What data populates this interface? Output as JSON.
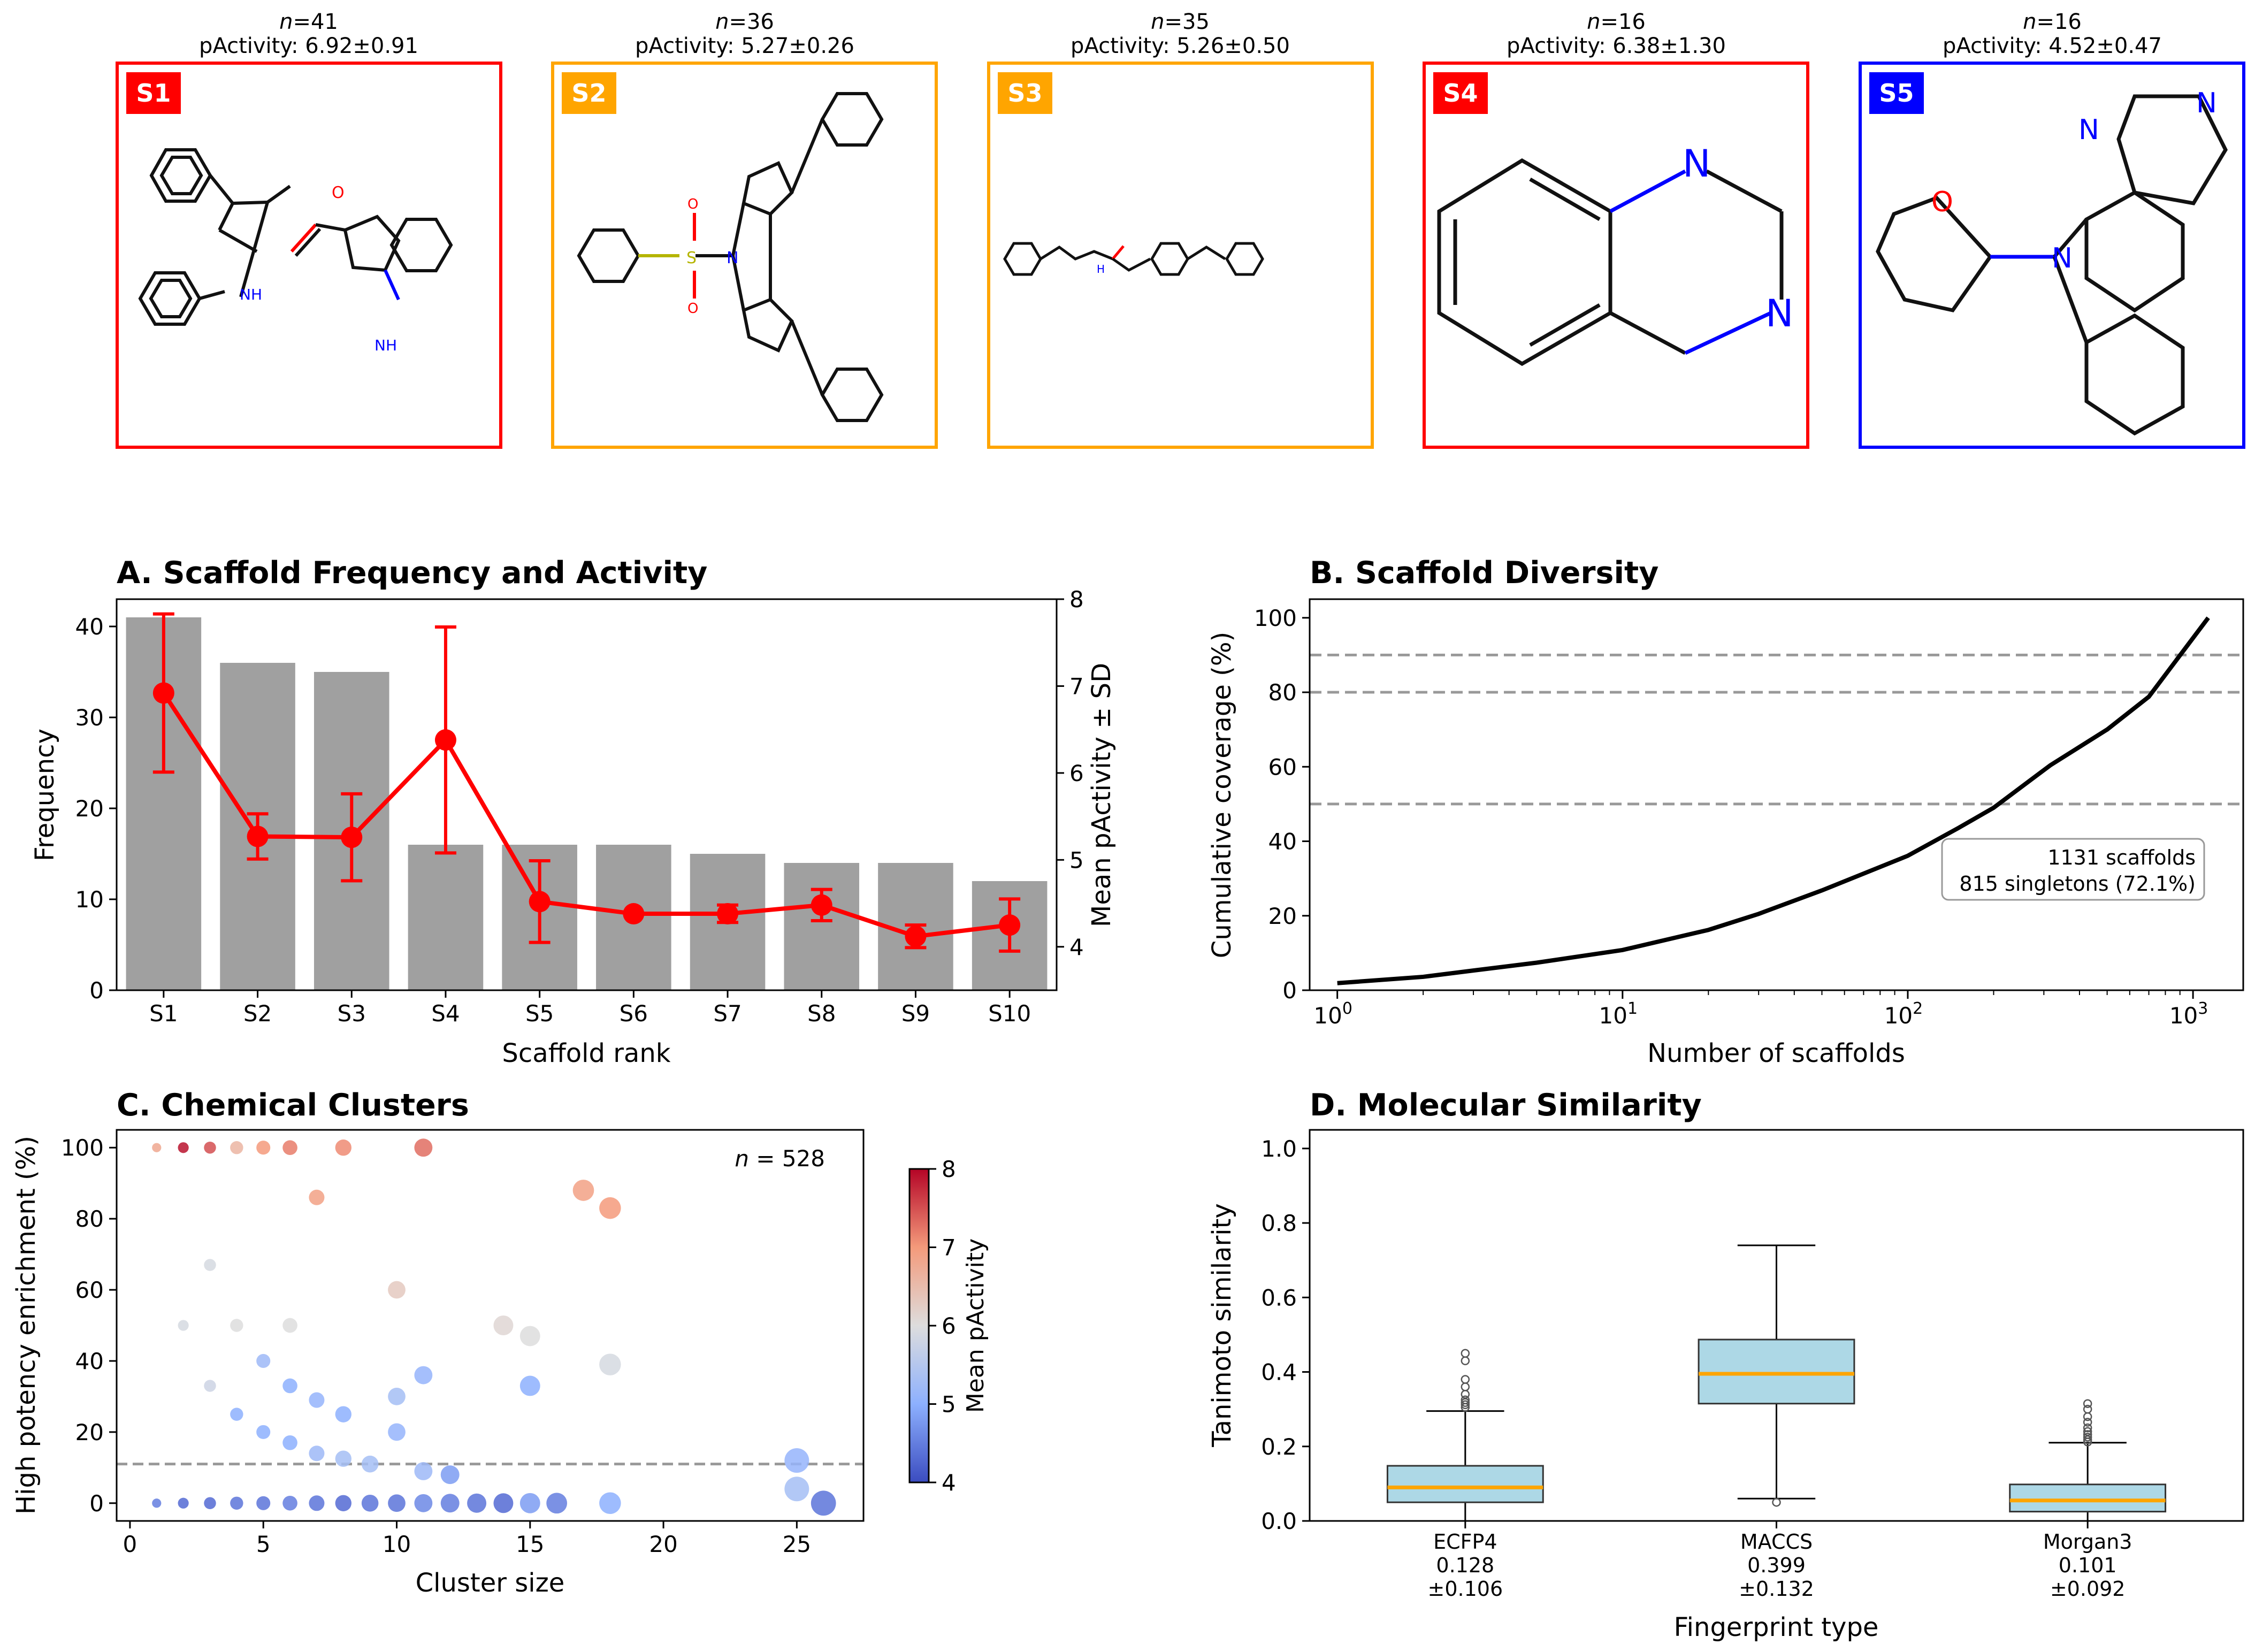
{
  "scaffolds": [
    {
      "label": "S1",
      "n_prefix": "n",
      "n_value": "=41",
      "activity": "pActivity: 6.92±0.91",
      "color": "#ff0000"
    },
    {
      "label": "S2",
      "n_prefix": "n",
      "n_value": "=36",
      "activity": "pActivity: 5.27±0.26",
      "color": "#ffa500"
    },
    {
      "label": "S3",
      "n_prefix": "n",
      "n_value": "=35",
      "activity": "pActivity: 5.26±0.50",
      "color": "#ffa500"
    },
    {
      "label": "S4",
      "n_prefix": "n",
      "n_value": "=16",
      "activity": "pActivity: 6.38±1.30",
      "color": "#ff0000"
    },
    {
      "label": "S5",
      "n_prefix": "n",
      "n_value": "=16",
      "activity": "pActivity: 4.52±0.47",
      "color": "#0000ff"
    }
  ],
  "chart_data": [
    {
      "panel": "A",
      "type": "bar",
      "title": "A. Scaffold Frequency and Activity",
      "xlabel": "Scaffold rank",
      "ylabel": "Frequency",
      "ylabel_right": "Mean pActivity ± SD",
      "categories": [
        "S1",
        "S2",
        "S3",
        "S4",
        "S5",
        "S6",
        "S7",
        "S8",
        "S9",
        "S10"
      ],
      "ylim": [
        0,
        43
      ],
      "yticks": [
        0,
        10,
        20,
        30,
        40
      ],
      "ylim_right": [
        3.5,
        8
      ],
      "yticks_right": [
        4,
        5,
        6,
        7,
        8
      ],
      "series": [
        {
          "type": "bar",
          "values": [
            41,
            36,
            35,
            16,
            16,
            16,
            15,
            14,
            14,
            12
          ],
          "color": "#a0a0a0"
        },
        {
          "type": "line",
          "values": [
            6.92,
            5.27,
            5.26,
            6.38,
            4.52,
            4.38,
            4.38,
            4.48,
            4.12,
            4.25
          ],
          "sd": [
            0.91,
            0.26,
            0.5,
            1.3,
            0.47,
            0.0,
            0.1,
            0.18,
            0.13,
            0.3
          ],
          "color": "#ff0000"
        }
      ]
    },
    {
      "panel": "B",
      "type": "line",
      "title": "B. Scaffold Diversity",
      "xlabel": "Number of scaffolds",
      "ylabel": "Cumulative coverage (%)",
      "xscale": "log",
      "xlim": [
        0.8,
        1500
      ],
      "xtick_labels": [
        {
          "base": "10",
          "exp": "0"
        },
        {
          "base": "10",
          "exp": "1"
        },
        {
          "base": "10",
          "exp": "2"
        },
        {
          "base": "10",
          "exp": "3"
        }
      ],
      "ylim": [
        0,
        105
      ],
      "yticks": [
        0,
        20,
        40,
        60,
        80,
        100
      ],
      "reference_lines": [
        50,
        80,
        90
      ],
      "annotation": [
        "1131 scaffolds",
        "815 singletons (72.1%)"
      ],
      "series": [
        {
          "x": [
            1,
            2,
            3,
            5,
            10,
            20,
            30,
            50,
            100,
            150,
            200,
            316,
            500,
            700,
            1131
          ],
          "y": [
            1.9,
            3.6,
            5.3,
            7.4,
            10.8,
            16.2,
            20.5,
            26.8,
            36.1,
            43.5,
            49.0,
            60.4,
            70.0,
            78.8,
            100.0
          ],
          "color": "#000000"
        }
      ]
    },
    {
      "panel": "C",
      "type": "scatter",
      "title": "C. Chemical Clusters",
      "xlabel": "Cluster size",
      "ylabel": "High potency enrichment (%)",
      "xlim": [
        -0.5,
        27.5
      ],
      "ylim": [
        -5,
        105
      ],
      "xticks": [
        0,
        5,
        10,
        15,
        20,
        25
      ],
      "yticks": [
        0,
        20,
        40,
        60,
        80,
        100
      ],
      "reference_line": 11,
      "annotation_prefix": "n",
      "annotation_value": " = 528",
      "colorbar_label": "Mean pActivity",
      "colorbar_range": [
        4,
        8
      ],
      "colorbar_ticks": [
        4,
        5,
        6,
        7,
        8
      ],
      "points": [
        {
          "x": 1,
          "y": 100,
          "c": 6.8
        },
        {
          "x": 2,
          "y": 100,
          "c": 7.9
        },
        {
          "x": 3,
          "y": 100,
          "c": 7.5
        },
        {
          "x": 4,
          "y": 100,
          "c": 6.6
        },
        {
          "x": 5,
          "y": 100,
          "c": 7.0
        },
        {
          "x": 6,
          "y": 100,
          "c": 7.2
        },
        {
          "x": 8,
          "y": 100,
          "c": 7.1
        },
        {
          "x": 11,
          "y": 100,
          "c": 7.3
        },
        {
          "x": 7,
          "y": 86,
          "c": 6.9
        },
        {
          "x": 17,
          "y": 88,
          "c": 6.9
        },
        {
          "x": 18,
          "y": 83,
          "c": 7.0
        },
        {
          "x": 3,
          "y": 67,
          "c": 5.9
        },
        {
          "x": 2,
          "y": 50,
          "c": 5.9
        },
        {
          "x": 4,
          "y": 50,
          "c": 6.0
        },
        {
          "x": 6,
          "y": 50,
          "c": 6.0
        },
        {
          "x": 10,
          "y": 60,
          "c": 6.3
        },
        {
          "x": 14,
          "y": 50,
          "c": 6.1
        },
        {
          "x": 15,
          "y": 47,
          "c": 6.0
        },
        {
          "x": 18,
          "y": 39,
          "c": 5.9
        },
        {
          "x": 3,
          "y": 33,
          "c": 5.8
        },
        {
          "x": 5,
          "y": 40,
          "c": 5.2
        },
        {
          "x": 4,
          "y": 25,
          "c": 5.0
        },
        {
          "x": 6,
          "y": 33,
          "c": 5.0
        },
        {
          "x": 7,
          "y": 29,
          "c": 5.1
        },
        {
          "x": 8,
          "y": 25,
          "c": 5.0
        },
        {
          "x": 10,
          "y": 30,
          "c": 5.3
        },
        {
          "x": 11,
          "y": 36,
          "c": 5.1
        },
        {
          "x": 15,
          "y": 33,
          "c": 5.0
        },
        {
          "x": 5,
          "y": 20,
          "c": 5.0
        },
        {
          "x": 6,
          "y": 17,
          "c": 5.0
        },
        {
          "x": 7,
          "y": 14,
          "c": 5.2
        },
        {
          "x": 8,
          "y": 12.5,
          "c": 5.3
        },
        {
          "x": 9,
          "y": 11,
          "c": 5.3
        },
        {
          "x": 10,
          "y": 20,
          "c": 5.1
        },
        {
          "x": 11,
          "y": 9,
          "c": 5.2
        },
        {
          "x": 12,
          "y": 8,
          "c": 4.8
        },
        {
          "x": 25,
          "y": 12,
          "c": 5.1
        },
        {
          "x": 25,
          "y": 4,
          "c": 5.3
        },
        {
          "x": 1,
          "y": 0,
          "c": 4.5
        },
        {
          "x": 2,
          "y": 0,
          "c": 4.3
        },
        {
          "x": 3,
          "y": 0,
          "c": 4.3
        },
        {
          "x": 4,
          "y": 0,
          "c": 4.4
        },
        {
          "x": 5,
          "y": 0,
          "c": 4.4
        },
        {
          "x": 6,
          "y": 0,
          "c": 4.5
        },
        {
          "x": 7,
          "y": 0,
          "c": 4.4
        },
        {
          "x": 8,
          "y": 0,
          "c": 4.3
        },
        {
          "x": 9,
          "y": 0,
          "c": 4.4
        },
        {
          "x": 10,
          "y": 0,
          "c": 4.4
        },
        {
          "x": 11,
          "y": 0,
          "c": 4.6
        },
        {
          "x": 12,
          "y": 0,
          "c": 4.5
        },
        {
          "x": 13,
          "y": 0,
          "c": 4.4
        },
        {
          "x": 14,
          "y": 0,
          "c": 4.3
        },
        {
          "x": 15,
          "y": 0,
          "c": 4.8
        },
        {
          "x": 16,
          "y": 0,
          "c": 4.5
        },
        {
          "x": 18,
          "y": 0,
          "c": 5.0
        },
        {
          "x": 26,
          "y": 0,
          "c": 4.4
        }
      ]
    },
    {
      "panel": "D",
      "type": "box",
      "title": "D. Molecular Similarity",
      "xlabel": "Fingerprint type",
      "ylabel": "Tanimoto similarity",
      "ylim": [
        0,
        1.05
      ],
      "yticks": [
        "0.0",
        "0.2",
        "0.4",
        "0.6",
        "0.8",
        "1.0"
      ],
      "categories": [
        {
          "name": "ECFP4",
          "mean": "0.128",
          "sd": "±0.106"
        },
        {
          "name": "MACCS",
          "mean": "0.399",
          "sd": "±0.132"
        },
        {
          "name": "Morgan3",
          "mean": "0.101",
          "sd": "±0.092"
        }
      ],
      "boxes": [
        {
          "min": 0.0,
          "q1": 0.05,
          "median": 0.09,
          "q3": 0.148,
          "max": 0.295,
          "outliers": [
            0.305,
            0.312,
            0.318,
            0.325,
            0.34,
            0.36,
            0.38,
            0.43,
            0.45
          ]
        },
        {
          "min": 0.06,
          "q1": 0.315,
          "median": 0.395,
          "q3": 0.487,
          "max": 0.74,
          "outliers": [
            0.05
          ]
        },
        {
          "min": 0.0,
          "q1": 0.025,
          "median": 0.055,
          "q3": 0.098,
          "max": 0.21,
          "outliers": [
            0.212,
            0.218,
            0.225,
            0.232,
            0.24,
            0.25,
            0.265,
            0.28,
            0.3,
            0.315
          ]
        }
      ],
      "box_color": "#add8e6",
      "median_color": "#ffa500"
    }
  ]
}
